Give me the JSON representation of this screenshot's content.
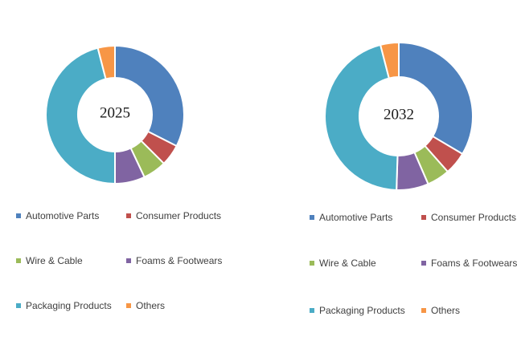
{
  "chart_data": [
    {
      "type": "pie",
      "title": "2025",
      "categories": [
        "Automotive Parts",
        "Consumer Products",
        "Wire & Cable",
        "Foams & Footwears",
        "Packaging Products",
        "Others"
      ],
      "values": [
        32.5,
        5.0,
        5.5,
        7.0,
        46.0,
        4.0
      ],
      "colors": [
        "#4f81bd",
        "#c0504d",
        "#9bbb59",
        "#8064a2",
        "#4bacc6",
        "#f79646"
      ]
    },
    {
      "type": "pie",
      "title": "2032",
      "categories": [
        "Automotive Parts",
        "Consumer Products",
        "Wire & Cable",
        "Foams & Footwears",
        "Packaging Products",
        "Others"
      ],
      "values": [
        33.5,
        5.0,
        5.0,
        7.0,
        45.5,
        4.0
      ],
      "colors": [
        "#4f81bd",
        "#c0504d",
        "#9bbb59",
        "#8064a2",
        "#4bacc6",
        "#f79646"
      ]
    }
  ]
}
